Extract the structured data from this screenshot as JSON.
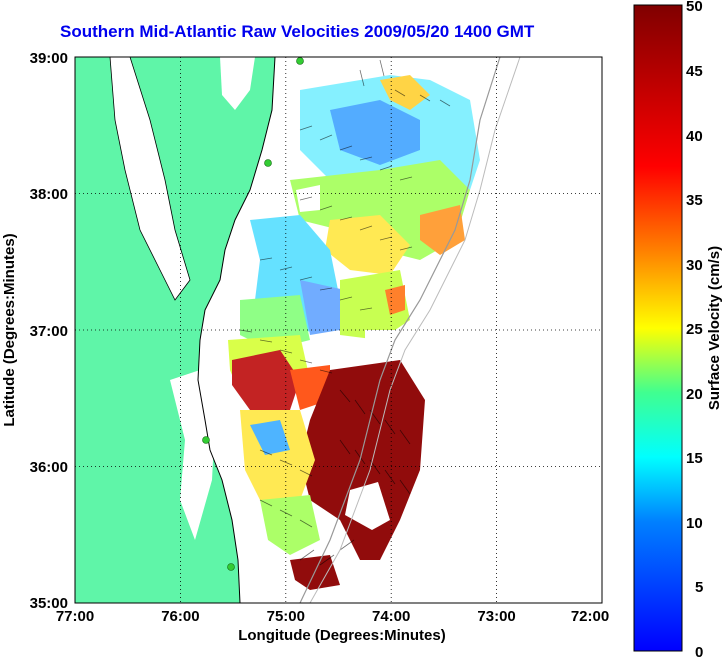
{
  "title": "Southern Mid-Atlantic Raw Velocities 2009/05/20 1400 GMT",
  "x_axis": {
    "label": "Longitude (Degrees:Minutes)",
    "ticks": [
      "77:00",
      "76:00",
      "75:00",
      "74:00",
      "73:00",
      "72:00"
    ]
  },
  "y_axis": {
    "label": "Latitude (Degrees:Minutes)",
    "ticks": [
      "39:00",
      "38:00",
      "37:00",
      "36:00",
      "35:00"
    ]
  },
  "colorbar": {
    "label": "Surface Velocity (cm/s)",
    "ticks": [
      "50",
      "45",
      "40",
      "35",
      "30",
      "25",
      "20",
      "15",
      "10",
      "5",
      "0"
    ],
    "min": 0,
    "max": 50,
    "colormap": "jet"
  },
  "colors": {
    "land": "#5ff5a8",
    "title": "#0000ee",
    "stations": "#33cc33"
  },
  "map": {
    "lon_range": [
      -77,
      -72
    ],
    "lat_range": [
      35,
      39
    ],
    "grid": "dotted"
  }
}
